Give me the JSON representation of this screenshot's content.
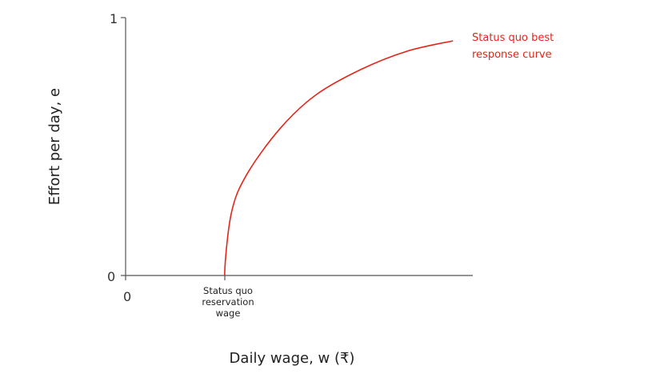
{
  "chart_data": {
    "type": "line",
    "xlabel": "Daily wage, w (₹)",
    "ylabel": "Effort per day, e",
    "ylim": [
      0,
      1
    ],
    "y_ticks": [
      "0",
      "1"
    ],
    "x_ticks": [
      "0"
    ],
    "x_annotation": "Status quo reservation wage",
    "x_annotation_lines": [
      "Status quo",
      "reservation",
      "wage"
    ],
    "grid": false,
    "series": [
      {
        "name": "Status quo best response curve",
        "label_lines": [
          "Status quo best",
          "response curve"
        ],
        "color": "#e3261b",
        "x": [
          28.6,
          30.5,
          34.9,
          44.6,
          54.9,
          68.1,
          81.3,
          94.5
        ],
        "y": [
          0,
          0.24,
          0.39,
          0.57,
          0.7,
          0.8,
          0.87,
          0.91
        ]
      }
    ]
  }
}
